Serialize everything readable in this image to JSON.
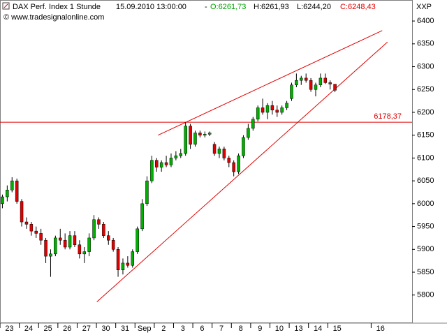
{
  "chart_data": {
    "type": "candlestick",
    "header": {
      "name": "DAX Perf. Index 1 Stunde",
      "datetime": "15.09.2010 13:00:00",
      "separator": "-",
      "open": "O:6261,73",
      "high": "H:6261,93",
      "low": "L:6244,20",
      "close": "C:6248,43"
    },
    "copyright": "© www.tradesignalonline.com",
    "symbol": "XXP",
    "ohlc": [
      [
        6000,
        6020,
        5990,
        6015
      ],
      [
        6015,
        6040,
        6005,
        6030
      ],
      [
        6030,
        6058,
        6025,
        6050
      ],
      [
        6050,
        6055,
        6000,
        6005
      ],
      [
        6005,
        6010,
        5950,
        5960
      ],
      [
        5960,
        5970,
        5945,
        5955
      ],
      [
        5955,
        5960,
        5930,
        5940
      ],
      [
        5940,
        5950,
        5925,
        5935
      ],
      [
        5935,
        5945,
        5910,
        5920
      ],
      [
        5920,
        5925,
        5870,
        5885
      ],
      [
        5885,
        5900,
        5840,
        5890
      ],
      [
        5890,
        5930,
        5885,
        5925
      ],
      [
        5925,
        5945,
        5910,
        5920
      ],
      [
        5920,
        5935,
        5900,
        5905
      ],
      [
        5905,
        5940,
        5900,
        5930
      ],
      [
        5930,
        5940,
        5905,
        5910
      ],
      [
        5910,
        5920,
        5880,
        5890
      ],
      [
        5890,
        5905,
        5870,
        5895
      ],
      [
        5895,
        5935,
        5885,
        5925
      ],
      [
        5925,
        5975,
        5920,
        5965
      ],
      [
        5965,
        5970,
        5945,
        5955
      ],
      [
        5955,
        5960,
        5925,
        5930
      ],
      [
        5930,
        5940,
        5910,
        5920
      ],
      [
        5920,
        5925,
        5895,
        5900
      ],
      [
        5900,
        5905,
        5840,
        5855
      ],
      [
        5855,
        5880,
        5845,
        5870
      ],
      [
        5870,
        5885,
        5860,
        5865
      ],
      [
        5865,
        5900,
        5860,
        5895
      ],
      [
        5895,
        5950,
        5890,
        5945
      ],
      [
        5945,
        6010,
        5940,
        6000
      ],
      [
        6000,
        6060,
        5995,
        6050
      ],
      [
        6050,
        6105,
        6045,
        6095
      ],
      [
        6095,
        6100,
        6070,
        6080
      ],
      [
        6080,
        6095,
        6070,
        6090
      ],
      [
        6090,
        6105,
        6080,
        6085
      ],
      [
        6085,
        6110,
        6080,
        6100
      ],
      [
        6100,
        6115,
        6095,
        6105
      ],
      [
        6105,
        6120,
        6100,
        6110
      ],
      [
        6110,
        6178,
        6105,
        6170
      ],
      [
        6170,
        6175,
        6120,
        6130
      ],
      [
        6130,
        6160,
        6125,
        6155
      ],
      [
        6155,
        6160,
        6145,
        6150
      ],
      [
        6150,
        6158,
        6145,
        6152
      ],
      [
        6152,
        6158,
        6148,
        6155
      ],
      [
        6130,
        6135,
        6105,
        6110
      ],
      [
        6110,
        6125,
        6100,
        6120
      ],
      [
        6120,
        6125,
        6095,
        6100
      ],
      [
        6100,
        6105,
        6080,
        6090
      ],
      [
        6090,
        6095,
        6060,
        6070
      ],
      [
        6070,
        6110,
        6065,
        6105
      ],
      [
        6105,
        6150,
        6100,
        6145
      ],
      [
        6145,
        6175,
        6140,
        6165
      ],
      [
        6165,
        6190,
        6160,
        6185
      ],
      [
        6185,
        6215,
        6180,
        6210
      ],
      [
        6210,
        6230,
        6195,
        6200
      ],
      [
        6200,
        6220,
        6185,
        6215
      ],
      [
        6215,
        6225,
        6195,
        6205
      ],
      [
        6205,
        6215,
        6190,
        6200
      ],
      [
        6200,
        6215,
        6195,
        6210
      ],
      [
        6210,
        6225,
        6205,
        6220
      ],
      [
        6230,
        6265,
        6225,
        6260
      ],
      [
        6260,
        6285,
        6255,
        6270
      ],
      [
        6270,
        6280,
        6260,
        6275
      ],
      [
        6275,
        6285,
        6265,
        6270
      ],
      [
        6270,
        6275,
        6245,
        6250
      ],
      [
        6250,
        6265,
        6235,
        6260
      ],
      [
        6260,
        6285,
        6255,
        6275
      ],
      [
        6275,
        6285,
        6262,
        6265
      ],
      [
        6265,
        6270,
        6250,
        6262
      ],
      [
        6261.73,
        6261.93,
        6244.2,
        6248.43
      ]
    ],
    "up_color": "#00b000",
    "down_color": "#e00000",
    "xlim": [
      -0.5,
      85
    ],
    "ylim": [
      5740,
      6446
    ],
    "yticks": [
      5800,
      5850,
      5900,
      5950,
      6000,
      6050,
      6100,
      6150,
      6200,
      6250,
      6300,
      6350,
      6400
    ],
    "xticks": [
      {
        "value": 0,
        "label": "23"
      },
      {
        "value": 4,
        "label": "24"
      },
      {
        "value": 8,
        "label": "25"
      },
      {
        "value": 12,
        "label": "26"
      },
      {
        "value": 16,
        "label": "27"
      },
      {
        "value": 20,
        "label": "30"
      },
      {
        "value": 24,
        "label": "31"
      },
      {
        "value": 28,
        "label": "Sep"
      },
      {
        "value": 32,
        "label": "2"
      },
      {
        "value": 36,
        "label": "3"
      },
      {
        "value": 40,
        "label": "6"
      },
      {
        "value": 44,
        "label": "7"
      },
      {
        "value": 48,
        "label": "8"
      },
      {
        "value": 52,
        "label": "9"
      },
      {
        "value": 56,
        "label": "10"
      },
      {
        "value": 60,
        "label": "13"
      },
      {
        "value": 64,
        "label": "14"
      },
      {
        "value": 68,
        "label": "15"
      },
      {
        "value": 77,
        "label": "16"
      }
    ],
    "hline": {
      "value": 6178.37,
      "label": "6178,37",
      "color": "#e00000"
    },
    "trendlines": [
      {
        "x": [
          32.3,
          78.8
        ],
        "y": [
          6150,
          6379
        ],
        "color": "#e00000"
      },
      {
        "x": [
          19.6,
          79.9
        ],
        "y": [
          5785,
          6354
        ],
        "color": "#e00000"
      }
    ]
  }
}
